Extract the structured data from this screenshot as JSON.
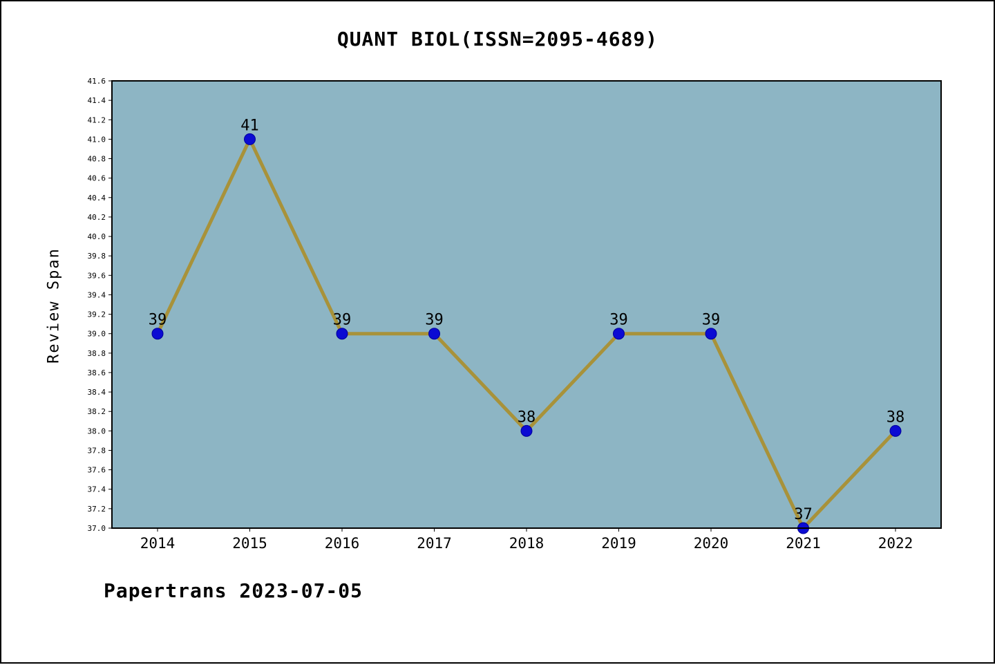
{
  "page": {
    "footer": "Papertrans 2023-07-05"
  },
  "chart_data": {
    "type": "line",
    "title": "QUANT BIOL(ISSN=2095-4689)",
    "xlabel": "",
    "ylabel": "Review Span",
    "x": [
      "2014",
      "2015",
      "2016",
      "2017",
      "2018",
      "2019",
      "2020",
      "2021",
      "2022"
    ],
    "series": [
      {
        "name": "Review Span",
        "values": [
          39,
          41,
          39,
          39,
          38,
          39,
          39,
          37,
          38
        ]
      }
    ],
    "data_labels": [
      "39",
      "41",
      "39",
      "39",
      "38",
      "39",
      "39",
      "37",
      "38"
    ],
    "ylim": [
      37.0,
      41.6
    ],
    "yticks": [
      "37.0",
      "37.2",
      "37.4",
      "37.6",
      "37.8",
      "38.0",
      "38.2",
      "38.4",
      "38.6",
      "38.8",
      "39.0",
      "39.2",
      "39.4",
      "39.6",
      "39.8",
      "40.0",
      "40.2",
      "40.4",
      "40.6",
      "40.8",
      "41.0",
      "41.2",
      "41.4",
      "41.6"
    ],
    "grid": false,
    "legend": "none",
    "colors": {
      "plot_bg": "#8db5c4",
      "line": "#a8923a",
      "marker": "#0b0bd3",
      "marker_edge": "#00009a",
      "axis": "#000000",
      "text": "#000000"
    }
  }
}
